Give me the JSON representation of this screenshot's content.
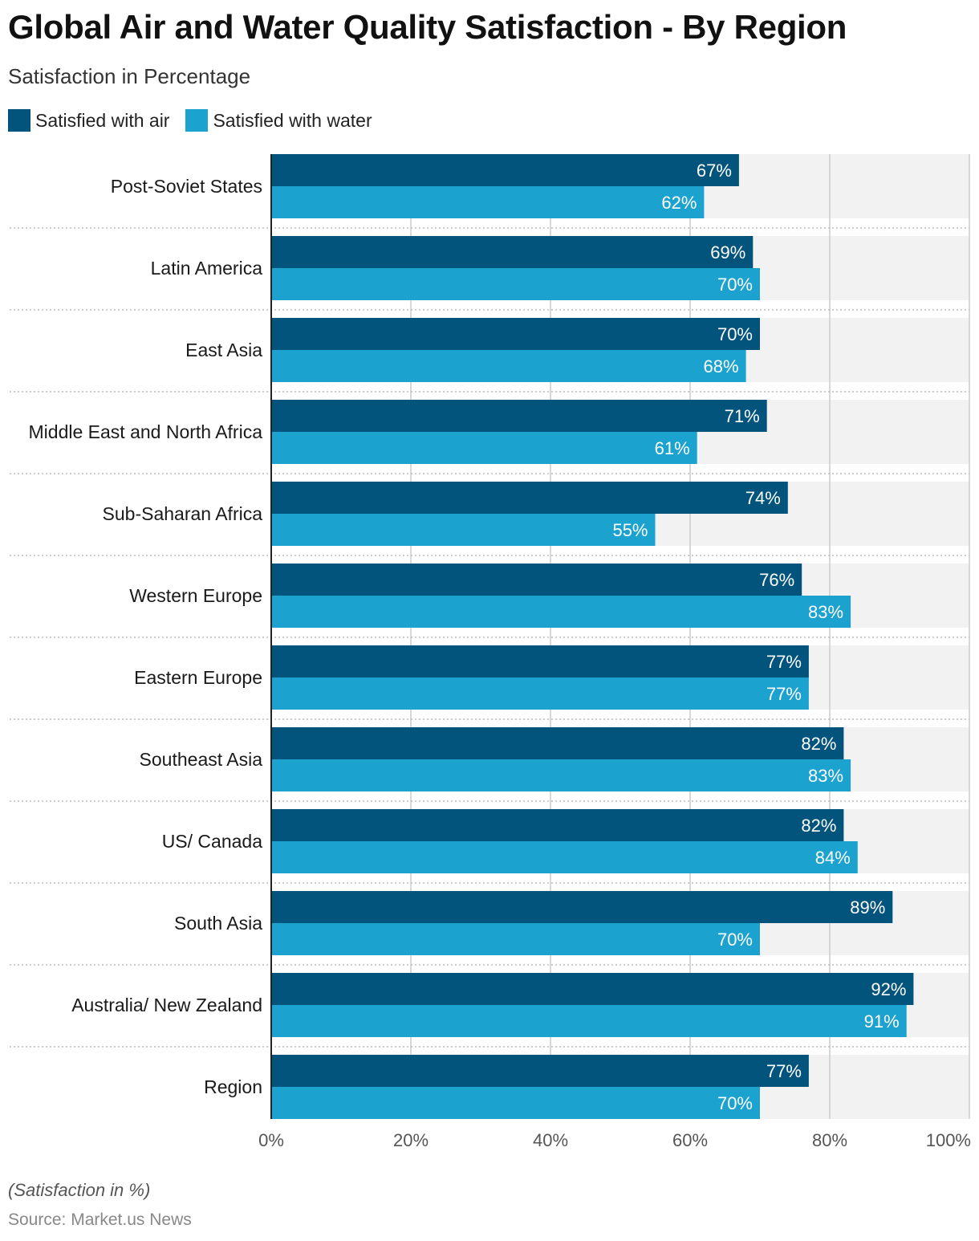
{
  "title": "Global Air and Water Quality Satisfaction - By Region",
  "subtitle": "Satisfaction in Percentage",
  "note": "(Satisfaction in %)",
  "source": "Source: Market.us News",
  "colors": {
    "air": "#02547c",
    "water": "#1ba2cf",
    "band": "#f2f2f2",
    "grid": "#cccccc"
  },
  "chart_data": {
    "type": "bar",
    "orientation": "horizontal",
    "title": "Global Air and Water Quality Satisfaction - By Region",
    "subtitle": "Satisfaction in Percentage",
    "xlabel": "",
    "ylabel": "",
    "xlim": [
      0,
      100
    ],
    "ticks": [
      {
        "value": 0,
        "label": "0%"
      },
      {
        "value": 20,
        "label": "20%"
      },
      {
        "value": 40,
        "label": "40%"
      },
      {
        "value": 60,
        "label": "60%"
      },
      {
        "value": 80,
        "label": "80%"
      },
      {
        "value": 100,
        "label": "100%"
      }
    ],
    "categories": [
      "Post-Soviet States",
      "Latin America",
      "East Asia",
      "Middle East and North Africa",
      "Sub-Saharan Africa",
      "Western Europe",
      "Eastern Europe",
      "Southeast Asia",
      "US/ Canada",
      "South Asia",
      "Australia/ New Zealand",
      "Region"
    ],
    "series": [
      {
        "name": "Satisfied with air",
        "values": [
          67,
          69,
          70,
          71,
          74,
          76,
          77,
          82,
          82,
          89,
          92,
          77
        ],
        "labels": [
          "67%",
          "69%",
          "70%",
          "71%",
          "74%",
          "76%",
          "77%",
          "82%",
          "82%",
          "89%",
          "92%",
          "77%"
        ]
      },
      {
        "name": "Satisfied with water",
        "values": [
          62,
          70,
          68,
          61,
          55,
          83,
          77,
          83,
          84,
          70,
          91,
          70
        ],
        "labels": [
          "62%",
          "70%",
          "68%",
          "61%",
          "55%",
          "83%",
          "77%",
          "83%",
          "84%",
          "70%",
          "91%",
          "70%"
        ]
      }
    ],
    "legend": "top-left",
    "grid": true
  }
}
